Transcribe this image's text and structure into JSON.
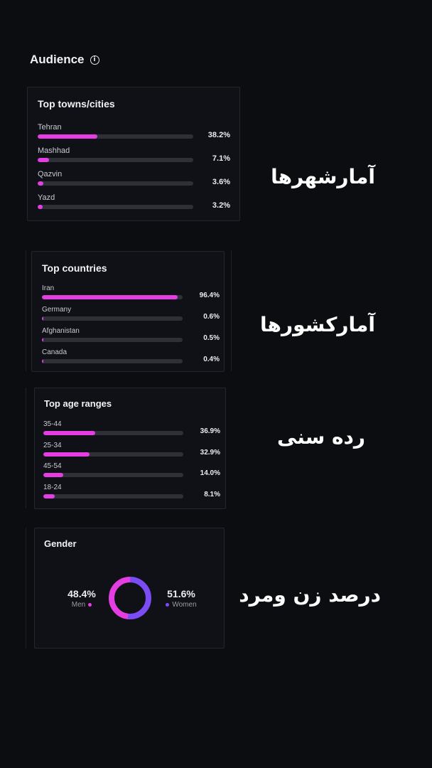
{
  "header": {
    "title": "Audience",
    "info_icon": "info-icon"
  },
  "cities": {
    "title": "Top towns/cities",
    "note": "آمارشهرها",
    "items": [
      {
        "label": "Tehran",
        "pct_text": "38.2%",
        "value": 38.2
      },
      {
        "label": "Mashhad",
        "pct_text": "7.1%",
        "value": 7.1
      },
      {
        "label": "Qazvin",
        "pct_text": "3.6%",
        "value": 3.6
      },
      {
        "label": "Yazd",
        "pct_text": "3.2%",
        "value": 3.2
      }
    ]
  },
  "countries": {
    "title": "Top countries",
    "note": "آمارکشورها",
    "items": [
      {
        "label": "Iran",
        "pct_text": "96.4%",
        "value": 96.4
      },
      {
        "label": "Germany",
        "pct_text": "0.6%",
        "value": 0.6
      },
      {
        "label": "Afghanistan",
        "pct_text": "0.5%",
        "value": 0.5
      },
      {
        "label": "Canada",
        "pct_text": "0.4%",
        "value": 0.4
      }
    ]
  },
  "ages": {
    "title": "Top age ranges",
    "note": "رده سنی",
    "items": [
      {
        "label": "35-44",
        "pct_text": "36.9%",
        "value": 36.9
      },
      {
        "label": "25-34",
        "pct_text": "32.9%",
        "value": 32.9
      },
      {
        "label": "45-54",
        "pct_text": "14.0%",
        "value": 14.0
      },
      {
        "label": "18-24",
        "pct_text": "8.1%",
        "value": 8.1
      }
    ]
  },
  "gender": {
    "title": "Gender",
    "note": "درصد زن ومرد",
    "men": {
      "pct_text": "48.4%",
      "label": "Men",
      "value": 48.4
    },
    "women": {
      "pct_text": "51.6%",
      "label": "Women",
      "value": 51.6
    }
  },
  "colors": {
    "accent": "#e43ee2",
    "women": "#7a4cf5",
    "track": "#2e3038",
    "card_bg": "#101116",
    "page_bg": "#0c0d11"
  }
}
